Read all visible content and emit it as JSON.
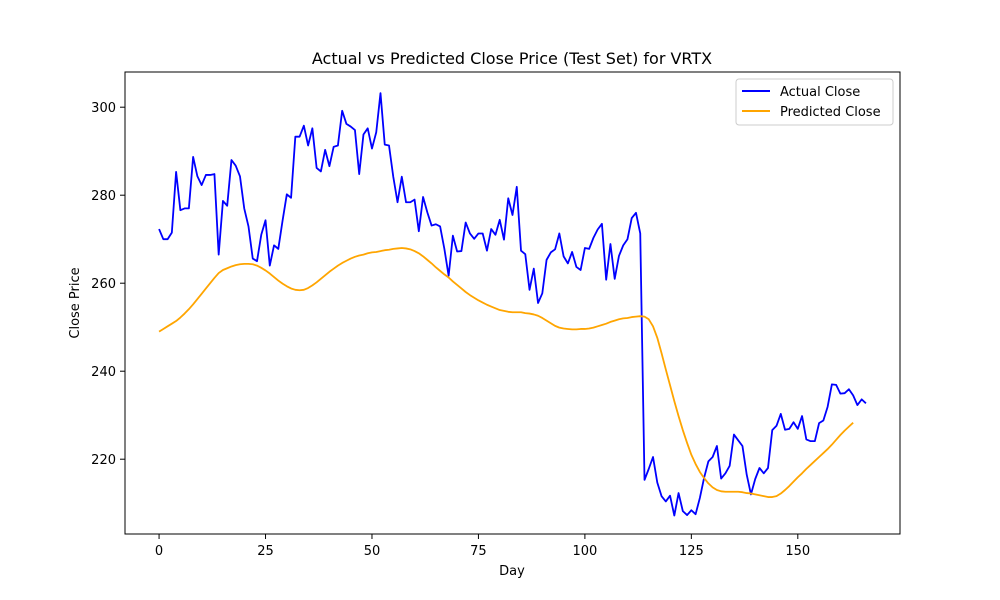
{
  "chart_data": {
    "type": "line",
    "title": "Actual vs Predicted Close Price (Test Set) for VRTX",
    "xlabel": "Day",
    "ylabel": "Close Price",
    "xlim": [
      -8,
      174
    ],
    "ylim": [
      203,
      308
    ],
    "xticks": [
      0,
      25,
      50,
      75,
      100,
      125,
      150
    ],
    "yticks": [
      220,
      240,
      260,
      280,
      300
    ],
    "grid": false,
    "legend_position": "top-right",
    "series": [
      {
        "name": "Actual Close",
        "color": "#0000ff",
        "y": [
          272.3,
          270.0,
          270.0,
          271.5,
          285.3,
          276.6,
          277.0,
          277.0,
          288.7,
          284.3,
          282.3,
          284.6,
          284.6,
          284.8,
          266.5,
          278.7,
          277.6,
          288.0,
          286.7,
          284.3,
          277.0,
          272.9,
          265.6,
          265.0,
          271.0,
          274.3,
          264.0,
          268.6,
          267.8,
          274.2,
          280.2,
          279.4,
          293.3,
          293.3,
          295.8,
          291.3,
          295.2,
          286.2,
          285.4,
          290.3,
          286.6,
          291.0,
          291.3,
          299.2,
          296.2,
          295.6,
          294.8,
          284.8,
          293.8,
          295.2,
          290.6,
          294.3,
          303.2,
          291.5,
          291.3,
          284.2,
          278.4,
          284.2,
          278.4,
          278.4,
          279.0,
          271.8,
          279.6,
          276.1,
          273.1,
          273.4,
          272.9,
          267.8,
          261.7,
          270.8,
          267.2,
          267.3,
          273.8,
          271.3,
          270.1,
          271.3,
          271.3,
          267.4,
          272.3,
          271.0,
          274.4,
          269.9,
          279.3,
          275.5,
          281.9,
          267.4,
          266.6,
          258.5,
          263.3,
          255.5,
          257.7,
          265.3,
          267.0,
          267.7,
          271.3,
          266.1,
          264.5,
          267.1,
          263.7,
          263.0,
          268.0,
          267.8,
          270.3,
          272.2,
          273.5,
          260.8,
          268.9,
          261.0,
          266.2,
          268.6,
          270.0,
          274.8,
          276.0,
          271.3,
          215.3,
          217.8,
          220.5,
          214.7,
          211.6,
          210.4,
          211.7,
          207.2,
          212.3,
          208.2,
          207.3,
          208.4,
          207.5,
          211.2,
          215.8,
          219.5,
          220.5,
          223.0,
          215.6,
          216.8,
          218.5,
          225.6,
          224.3,
          223.0,
          216.5,
          212.0,
          215.5,
          218.0,
          216.8,
          218.0,
          226.6,
          227.6,
          230.3,
          226.7,
          226.9,
          228.4,
          226.9,
          229.8,
          224.5,
          224.1,
          224.1,
          228.2,
          228.8,
          231.9,
          237.0,
          236.9,
          234.9,
          235.0,
          235.9,
          234.5,
          232.3,
          233.6,
          232.7
        ]
      },
      {
        "name": "Predicted Close",
        "color": "#ffa500",
        "y": [
          249.0,
          249.6,
          250.2,
          250.8,
          251.4,
          252.2,
          253.1,
          254.1,
          255.2,
          256.4,
          257.6,
          258.8,
          260.0,
          261.2,
          262.3,
          263.0,
          263.4,
          263.8,
          264.1,
          264.3,
          264.4,
          264.4,
          264.3,
          264.0,
          263.5,
          262.9,
          262.2,
          261.4,
          260.6,
          259.9,
          259.3,
          258.8,
          258.5,
          258.4,
          258.5,
          258.9,
          259.5,
          260.2,
          261.0,
          261.8,
          262.6,
          263.3,
          264.0,
          264.6,
          265.1,
          265.6,
          266.0,
          266.3,
          266.5,
          266.8,
          267.0,
          267.1,
          267.3,
          267.5,
          267.6,
          267.8,
          267.9,
          268.0,
          267.9,
          267.7,
          267.3,
          266.8,
          266.1,
          265.3,
          264.5,
          263.6,
          262.8,
          262.0,
          261.3,
          260.4,
          259.6,
          258.8,
          258.0,
          257.3,
          256.7,
          256.1,
          255.6,
          255.1,
          254.7,
          254.3,
          253.9,
          253.7,
          253.5,
          253.4,
          253.4,
          253.4,
          253.2,
          253.1,
          252.9,
          252.6,
          252.1,
          251.5,
          250.9,
          250.3,
          249.9,
          249.7,
          249.6,
          249.5,
          249.5,
          249.6,
          249.6,
          249.7,
          249.9,
          250.2,
          250.5,
          250.8,
          251.2,
          251.5,
          251.8,
          252.0,
          252.1,
          252.3,
          252.4,
          252.5,
          252.4,
          251.8,
          250.2,
          247.6,
          244.1,
          240.4,
          236.8,
          233.2,
          229.8,
          226.6,
          223.7,
          221.0,
          218.9,
          217.1,
          215.7,
          214.5,
          213.6,
          213.0,
          212.7,
          212.6,
          212.6,
          212.6,
          212.6,
          212.5,
          212.3,
          212.2,
          212.0,
          211.8,
          211.6,
          211.4,
          211.4,
          211.6,
          212.2,
          213.0,
          213.9,
          214.9,
          215.9,
          216.8,
          217.8,
          218.7,
          219.6,
          220.5,
          221.4,
          222.3,
          223.3,
          224.4,
          225.5,
          226.5,
          227.4,
          228.3
        ]
      }
    ]
  }
}
